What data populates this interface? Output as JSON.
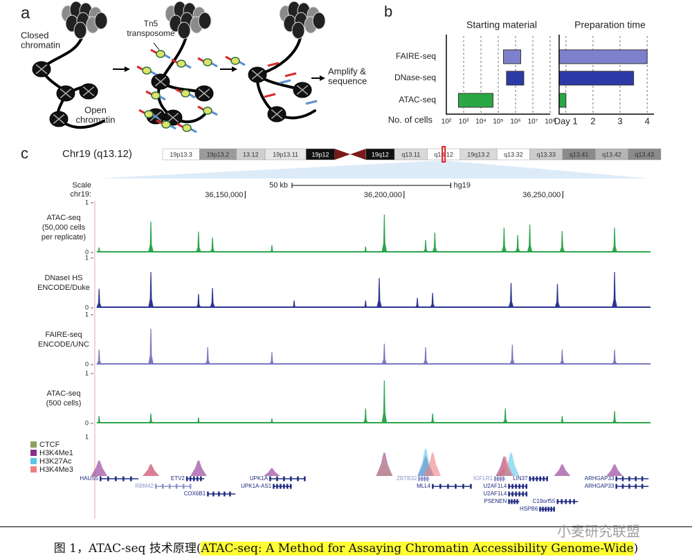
{
  "panel_a": {
    "label": "a",
    "closed": [
      "Closed",
      "chromatin"
    ],
    "tn5": [
      "Tn5",
      "transposome"
    ],
    "open": [
      "Open",
      "chromatin"
    ],
    "amplify": [
      "Amplify &",
      "sequence"
    ]
  },
  "panel_b": {
    "label": "b",
    "categories": [
      "FAIRE-seq",
      "DNase-seq",
      "ATAC-seq"
    ],
    "colors": [
      "#7d80cc",
      "#2b3aa6",
      "#2aa845"
    ],
    "starting_material": {
      "title": "Starting material",
      "xlabel": "No. of cells",
      "log": true,
      "xlim": [
        100,
        100000000
      ],
      "xticks": [
        {
          "value": 100,
          "label": "10²"
        },
        {
          "value": 1000,
          "label": "10³"
        },
        {
          "value": 10000,
          "label": "10⁴"
        },
        {
          "value": 100000,
          "label": "10⁵"
        },
        {
          "value": 1000000,
          "label": "10⁶"
        },
        {
          "value": 10000000,
          "label": "10⁷"
        },
        {
          "value": 100000000,
          "label": "10⁸"
        }
      ],
      "values": [
        [
          200000,
          2000000
        ],
        [
          300000,
          3000000
        ],
        [
          500,
          50000
        ]
      ]
    },
    "preparation_time": {
      "title": "Preparation time",
      "xlim": [
        0.75,
        4.25
      ],
      "xticks": [
        {
          "value": 1,
          "label": "Day 1"
        },
        2,
        3,
        4
      ],
      "values": [
        4,
        3.5,
        1
      ]
    }
  },
  "panel_c": {
    "label": "c",
    "chromosome": "Chr19 (q13.12)",
    "bands": [
      {
        "name": "19p13.3",
        "color": "#ffffff"
      },
      {
        "name": "19p13.2",
        "color": "#9a9a9a"
      },
      {
        "name": "13.12",
        "color": "#cfcfcf"
      },
      {
        "name": "19p13.11",
        "color": "#e6e6e6"
      },
      {
        "name": "19p12",
        "color": "#111111"
      },
      {
        "name": "19q12",
        "color": "#111111"
      },
      {
        "name": "q13.11",
        "color": "#d9d9d9"
      },
      {
        "name": "q13.12",
        "color": "#ffffff"
      },
      {
        "name": "19q13.2",
        "color": "#d9d9d9"
      },
      {
        "name": "q13.32",
        "color": "#ffffff"
      },
      {
        "name": "q13.33",
        "color": "#cccccc"
      },
      {
        "name": "q13.41",
        "color": "#8a8a8a"
      },
      {
        "name": "q13.42",
        "color": "#b5b5b5"
      },
      {
        "name": "q13.43",
        "color": "#8a8a8a"
      }
    ],
    "scale": {
      "label": "Scale",
      "chr": "chr19:",
      "bar": {
        "value": 50000,
        "label": "50 kb"
      },
      "assembly": "hg19"
    },
    "xlim": [
      36103300,
      36277600
    ],
    "xticks": [
      {
        "value": 36150000,
        "label": "36,150,000"
      },
      {
        "value": 36200000,
        "label": "36,200,000"
      },
      {
        "value": 36250000,
        "label": "36,250,000"
      }
    ],
    "tracks": [
      {
        "label": [
          "ATAC-seq",
          "(50,000 cells",
          "per replicate)"
        ],
        "color": "#2ca64b",
        "ylim": [
          0,
          1
        ],
        "yticks": [
          0,
          1
        ],
        "x": [
          36104000,
          36120300,
          36135300,
          36139700,
          36158400,
          36187900,
          36193800,
          36206800,
          36209700,
          36231500,
          36235800,
          36239600,
          36249800,
          36266300
        ],
        "y": [
          0.1,
          0.62,
          0.42,
          0.3,
          0.15,
          0.12,
          0.76,
          0.25,
          0.4,
          0.5,
          0.35,
          0.56,
          0.43,
          0.5
        ]
      },
      {
        "label": [
          "DNaseI HS",
          "ENCODE/Duke"
        ],
        "color": "#2c3590",
        "ylim": [
          0,
          1
        ],
        "yticks": [
          0,
          1
        ],
        "x": [
          36104000,
          36120300,
          36135300,
          36139700,
          36165400,
          36187900,
          36192200,
          36204200,
          36209000,
          36233700,
          36248300,
          36266300
        ],
        "y": [
          0.38,
          0.72,
          0.28,
          0.4,
          0.15,
          0.15,
          0.6,
          0.2,
          0.3,
          0.5,
          0.48,
          0.72
        ]
      },
      {
        "label": [
          "FAIRE-seq",
          "ENCODE/UNC"
        ],
        "color": "#7a78c0",
        "ylim": [
          0,
          1
        ],
        "yticks": [
          0,
          1
        ],
        "x": [
          36104000,
          36120300,
          36138200,
          36158400,
          36193800,
          36206800,
          36234100,
          36249800,
          36266300
        ],
        "y": [
          0.3,
          0.72,
          0.35,
          0.25,
          0.42,
          0.35,
          0.4,
          0.3,
          0.3
        ]
      },
      {
        "label": [
          "ATAC-seq",
          "(500 cells)"
        ],
        "color": "#2ca64b",
        "ylim": [
          0,
          1
        ],
        "yticks": [
          0,
          1
        ],
        "x": [
          36104000,
          36120300,
          36135300,
          36158400,
          36187900,
          36193800,
          36209000,
          36231900,
          36249800,
          36266300
        ],
        "y": [
          0.15,
          0.2,
          0.12,
          0.1,
          0.3,
          0.86,
          0.2,
          0.3,
          0.15,
          0.25
        ]
      }
    ],
    "histone": {
      "ylim": [
        0,
        1
      ],
      "yticks": [
        1
      ],
      "series": [
        {
          "name": "CTCF",
          "color": "#8aa45a",
          "x": [
            36193800,
            36231500
          ],
          "y": [
            0.3,
            0.2
          ]
        },
        {
          "name": "H3K4Me1",
          "color": "#8b2d8f",
          "x": [
            36104000,
            36120300,
            36135300,
            36158400,
            36193800,
            36206800,
            36231500,
            36249800,
            36266300
          ],
          "y": [
            0.4,
            0.3,
            0.4,
            0.2,
            0.6,
            0.5,
            0.5,
            0.3,
            0.3
          ]
        },
        {
          "name": "H3K27Ac",
          "color": "#5bc8e8",
          "x": [
            36193800,
            36206800,
            36233700
          ],
          "y": [
            0.5,
            0.7,
            0.6
          ]
        },
        {
          "name": "H3K4Me3",
          "color": "#f08080",
          "x": [
            36120300,
            36193800,
            36209000,
            36231900
          ],
          "y": [
            0.3,
            0.5,
            0.6,
            0.5
          ]
        }
      ]
    },
    "genes": [
      {
        "name": "HAUS5",
        "start": 36104400,
        "end": 36116400,
        "color": "#1f2a80"
      },
      {
        "name": "RBM42",
        "start": 36121800,
        "end": 36132700,
        "color": "#8d93c9"
      },
      {
        "name": "ETV2",
        "start": 36131600,
        "end": 36137100,
        "color": "#1f2a80"
      },
      {
        "name": "COX6B1",
        "start": 36138200,
        "end": 36146900,
        "color": "#1f2a80"
      },
      {
        "name": "UPK1A",
        "start": 36157800,
        "end": 36168700,
        "color": "#1f2a80"
      },
      {
        "name": "UPK1A-AS1",
        "start": 36158900,
        "end": 36164300,
        "color": "#1f2a80"
      },
      {
        "name": "ZBTB32",
        "start": 36204700,
        "end": 36208000,
        "color": "#8d93c9"
      },
      {
        "name": "MLL4",
        "start": 36209000,
        "end": 36221000,
        "color": "#1f2a80"
      },
      {
        "name": "IGFLR1",
        "start": 36228600,
        "end": 36231900,
        "color": "#8d93c9"
      },
      {
        "name": "U2AF1L4",
        "start": 36233000,
        "end": 36238500,
        "color": "#1f2a80"
      },
      {
        "name": "U2AF1L4",
        "start": 36233000,
        "end": 36238500,
        "color": "#1f2a80"
      },
      {
        "name": "PSENEN",
        "start": 36233000,
        "end": 36236300,
        "color": "#1f2a80"
      },
      {
        "name": "LIN37",
        "start": 36239600,
        "end": 36245000,
        "color": "#1f2a80"
      },
      {
        "name": "HSPB6",
        "start": 36242800,
        "end": 36247200,
        "color": "#1f2a80"
      },
      {
        "name": "C19orf55",
        "start": 36248300,
        "end": 36254800,
        "color": "#1f2a80"
      },
      {
        "name": "ARHGAP33",
        "start": 36266800,
        "end": 36277000,
        "color": "#1f2a80"
      },
      {
        "name": "ARHGAP33",
        "start": 36266800,
        "end": 36277000,
        "color": "#1f2a80"
      }
    ]
  },
  "caption": {
    "prefix": "图 1，ATAC-seq 技术原理(",
    "title": "ATAC-seq: A Method for Assaying Chromatin Accessibility Genome-Wide",
    "suffix": ")"
  },
  "watermark": "小麦研究联盟"
}
